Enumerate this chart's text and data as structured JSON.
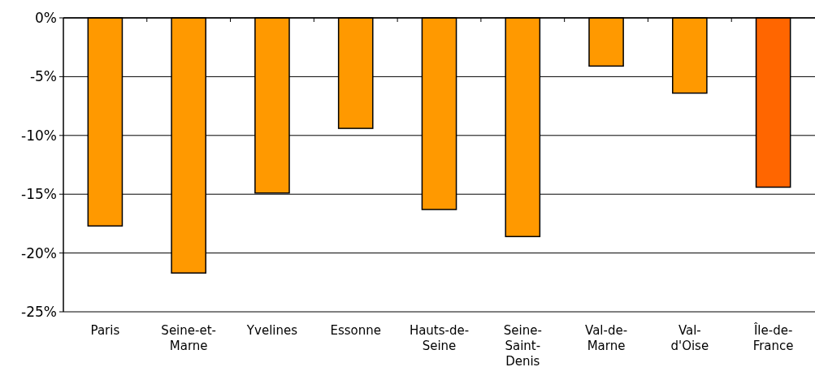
{
  "chart_data": {
    "type": "bar",
    "categories": [
      "Paris",
      "Seine-et-Marne",
      "Yvelines",
      "Essonne",
      "Hauts-de-Seine",
      "Seine-Saint-Denis",
      "Val-de-Marne",
      "Val-d'Oise",
      "Île-de-France"
    ],
    "values": [
      -17.7,
      -21.7,
      -14.9,
      -9.4,
      -16.3,
      -18.6,
      -4.1,
      -6.4,
      -14.4
    ],
    "colors": [
      "#ff9900",
      "#ff9900",
      "#ff9900",
      "#ff9900",
      "#ff9900",
      "#ff9900",
      "#ff9900",
      "#ff9900",
      "#ff6600"
    ],
    "ylim": [
      -25,
      0
    ],
    "yticks": [
      {
        "value": 0,
        "label": "0%"
      },
      {
        "value": -5,
        "label": "-5%"
      },
      {
        "value": -10,
        "label": "-10%"
      },
      {
        "value": -15,
        "label": "-15%"
      },
      {
        "value": -20,
        "label": "-20%"
      },
      {
        "value": -25,
        "label": "-25%"
      }
    ],
    "grid": "y"
  }
}
